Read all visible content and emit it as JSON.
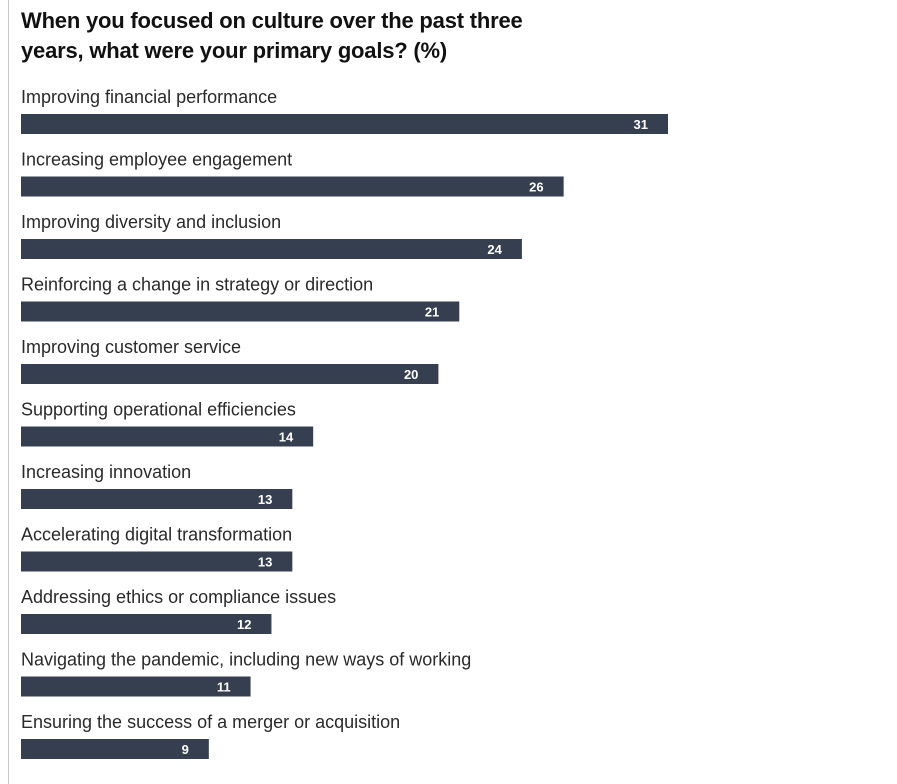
{
  "chart_data": {
    "type": "bar",
    "orientation": "horizontal",
    "title": "When you focused on culture over the past three years, what were your primary goals? (%)",
    "categories": [
      "Improving financial performance",
      "Increasing employee engagement",
      "Improving diversity and inclusion",
      "Reinforcing a change in strategy or direction",
      "Improving customer service",
      "Supporting operational efficiencies",
      "Increasing innovation",
      "Accelerating digital transformation",
      "Addressing ethics or compliance issues",
      "Navigating the pandemic, including new ways of working",
      "Ensuring the success of a merger or acquisition"
    ],
    "values": [
      31,
      26,
      24,
      21,
      20,
      14,
      13,
      13,
      12,
      11,
      9
    ],
    "data_labels": true,
    "xlim": [
      0,
      31
    ],
    "grid": false,
    "legend": "none",
    "colors": {
      "bar": "#353f4f",
      "label_text": "#ffffff"
    }
  }
}
